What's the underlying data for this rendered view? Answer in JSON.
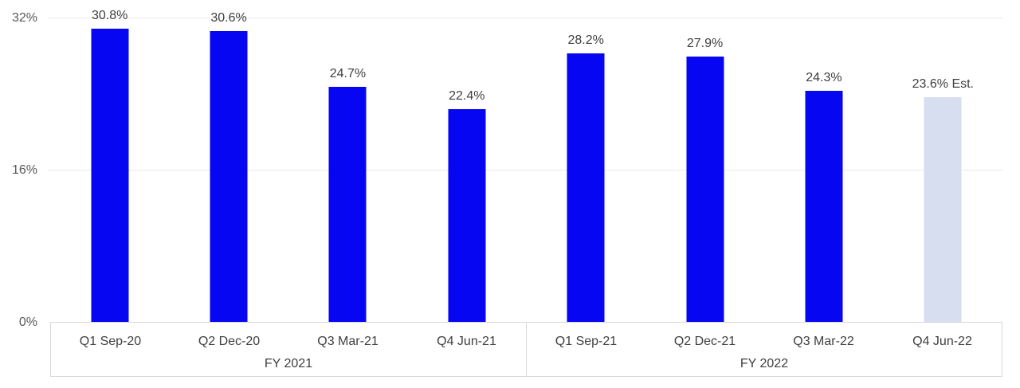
{
  "chart_data": {
    "type": "bar",
    "title": "",
    "xlabel": "",
    "ylabel": "",
    "ylim": [
      0,
      32
    ],
    "grid": true,
    "legend_position": "none",
    "bar_color": "#0606f2",
    "estimated_bar_color": "#d7def0",
    "yticks": [
      {
        "label": "32%",
        "value": 32,
        "gridline": true
      },
      {
        "label": "16%",
        "value": 16,
        "gridline": true
      },
      {
        "label": "0%",
        "value": 0,
        "gridline": false
      }
    ],
    "groups": [
      {
        "label": "FY 2021"
      },
      {
        "label": "FY 2022"
      }
    ],
    "points": [
      {
        "category": "Q1 Sep-20",
        "value": 30.8,
        "label": "30.8%",
        "group": "FY 2021",
        "estimated": false
      },
      {
        "category": "Q2 Dec-20",
        "value": 30.6,
        "label": "30.6%",
        "group": "FY 2021",
        "estimated": false
      },
      {
        "category": "Q3 Mar-21",
        "value": 24.7,
        "label": "24.7%",
        "group": "FY 2021",
        "estimated": false
      },
      {
        "category": "Q4 Jun-21",
        "value": 22.4,
        "label": "22.4%",
        "group": "FY 2021",
        "estimated": false
      },
      {
        "category": "Q1 Sep-21",
        "value": 28.2,
        "label": "28.2%",
        "group": "FY 2022",
        "estimated": false
      },
      {
        "category": "Q2 Dec-21",
        "value": 27.9,
        "label": "27.9%",
        "group": "FY 2022",
        "estimated": false
      },
      {
        "category": "Q3 Mar-22",
        "value": 24.3,
        "label": "24.3%",
        "group": "FY 2022",
        "estimated": false
      },
      {
        "category": "Q4 Jun-22",
        "value": 23.6,
        "label": "23.6% Est.",
        "group": "FY 2022",
        "estimated": true
      }
    ]
  }
}
